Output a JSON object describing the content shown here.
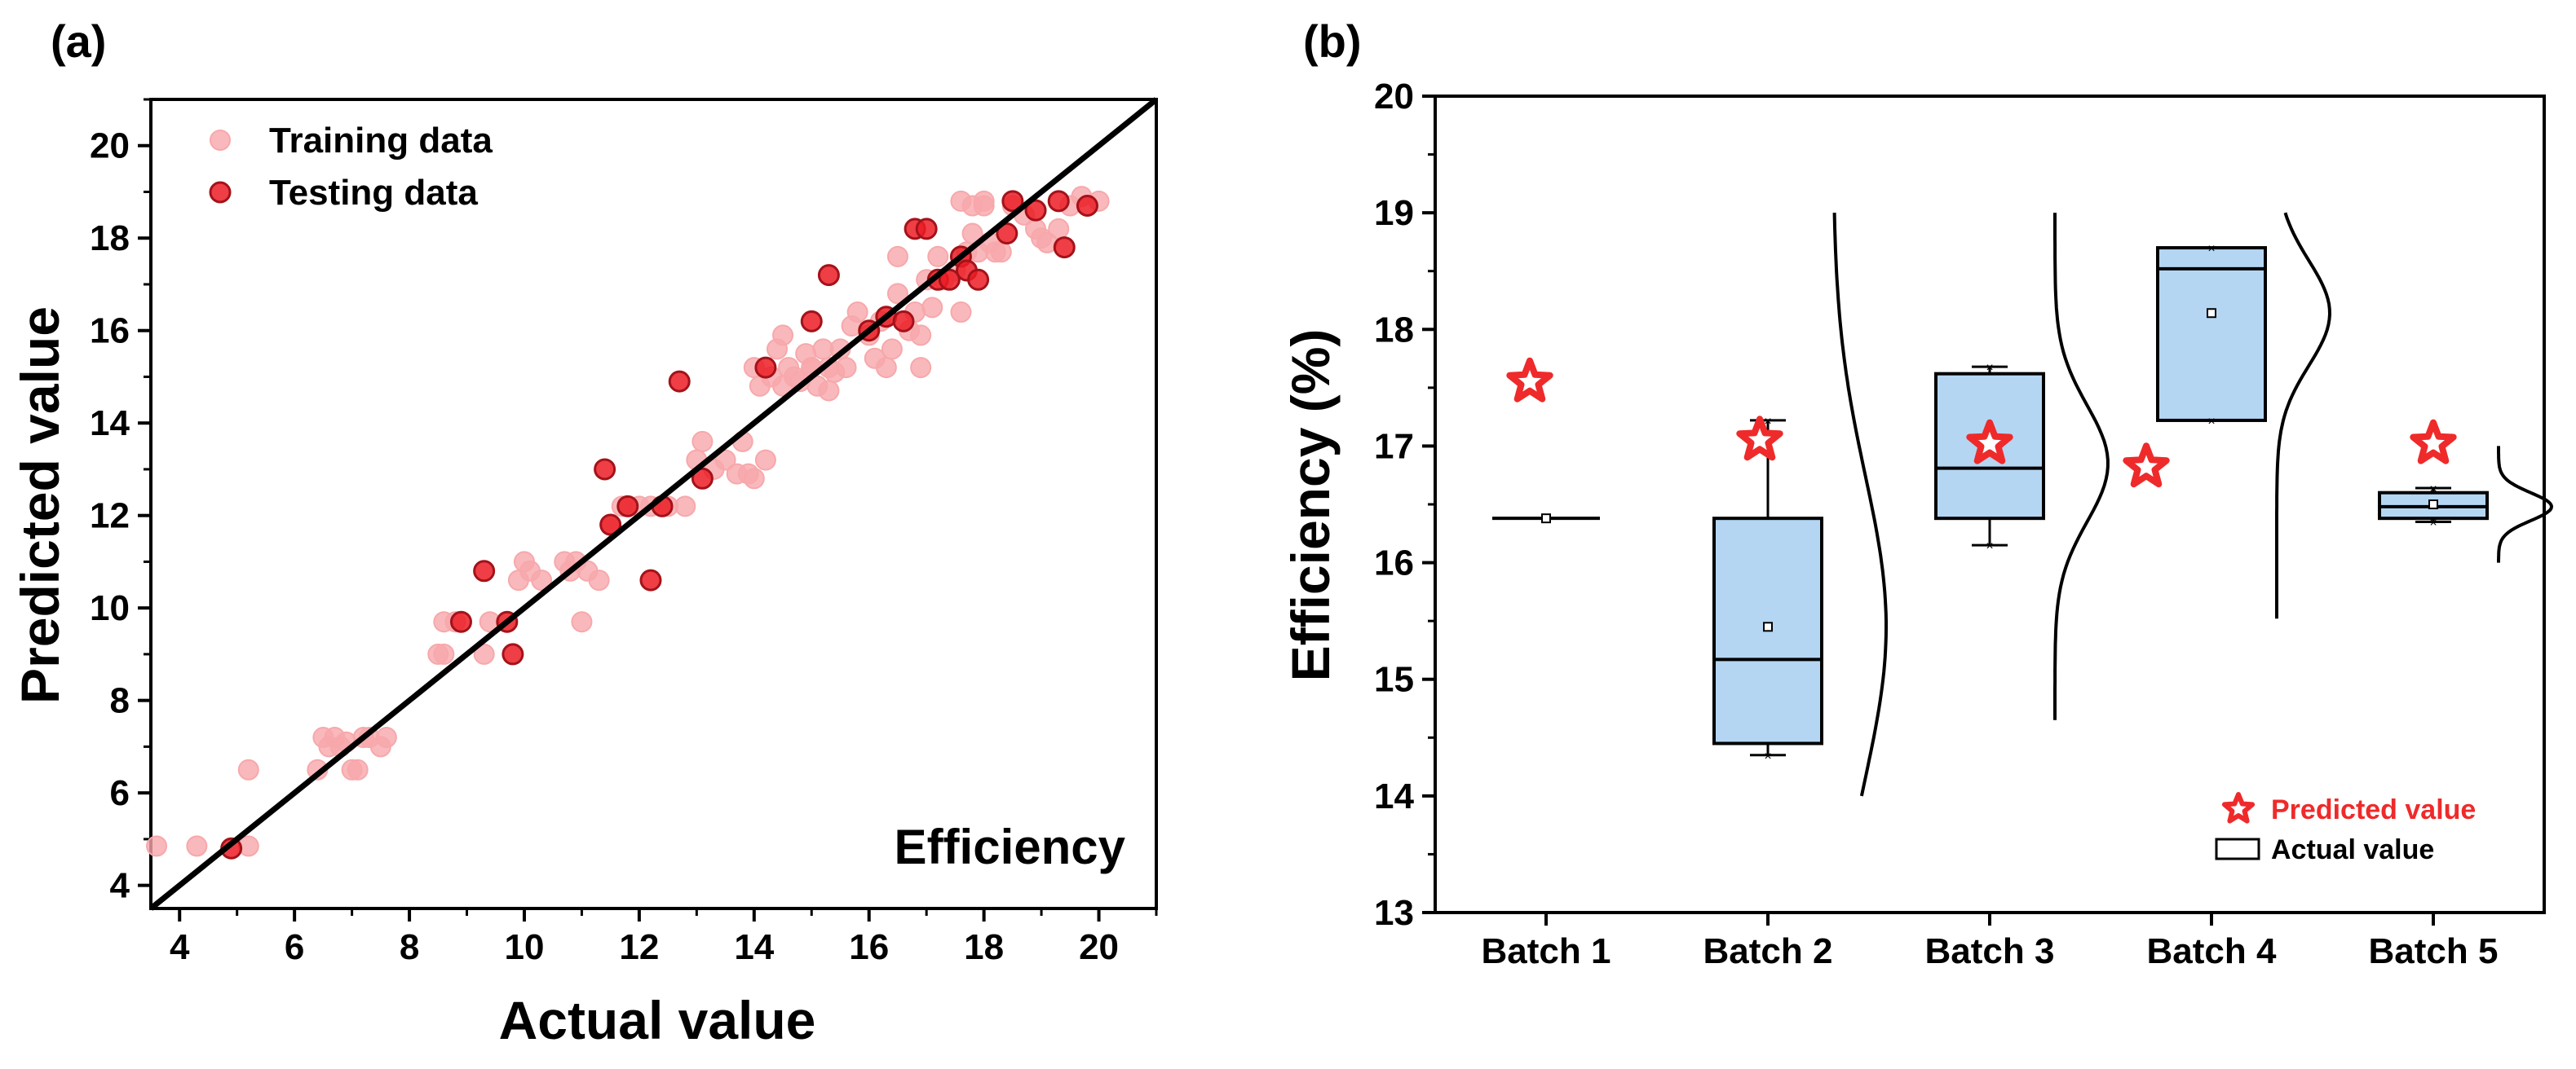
{
  "colors": {
    "training": "#f7a8ab",
    "testing": "#ec1c24",
    "box_fill": "#b4d6f3",
    "star": "#ef2a2a",
    "line": "#000000"
  },
  "chart_data": [
    {
      "type": "scatter",
      "panel_label": "(a)",
      "xlabel": "Actual value",
      "ylabel": "Predicted value",
      "annotation": "Efficiency",
      "xlim": [
        3.5,
        21.0
      ],
      "ylim": [
        3.5,
        21.0
      ],
      "xticks": [
        4,
        6,
        8,
        10,
        12,
        14,
        16,
        18,
        20
      ],
      "yticks": [
        4,
        6,
        8,
        10,
        12,
        14,
        16,
        18,
        20
      ],
      "xtick_labels": [
        "4",
        "6",
        "8",
        "10",
        "12",
        "14",
        "16",
        "18",
        "20"
      ],
      "ytick_labels": [
        "4",
        "6",
        "8",
        "10",
        "12",
        "14",
        "16",
        "18",
        "20"
      ],
      "legend_position": "top-left",
      "reference_line": "y = x",
      "series": [
        {
          "name": "Training data",
          "points": [
            [
              3.6,
              4.85
            ],
            [
              4.3,
              4.85
            ],
            [
              5.2,
              4.85
            ],
            [
              5.2,
              6.5
            ],
            [
              6.4,
              6.5
            ],
            [
              6.5,
              7.2
            ],
            [
              6.6,
              7.0
            ],
            [
              6.7,
              7.2
            ],
            [
              6.8,
              7.0
            ],
            [
              6.9,
              7.1
            ],
            [
              7.0,
              6.5
            ],
            [
              7.1,
              6.5
            ],
            [
              7.2,
              7.2
            ],
            [
              7.3,
              7.2
            ],
            [
              7.5,
              7.0
            ],
            [
              7.6,
              7.2
            ],
            [
              8.5,
              9.0
            ],
            [
              8.6,
              9.0
            ],
            [
              8.6,
              9.7
            ],
            [
              8.8,
              9.7
            ],
            [
              9.3,
              9.0
            ],
            [
              9.4,
              9.7
            ],
            [
              9.9,
              10.6
            ],
            [
              10.0,
              11.0
            ],
            [
              10.1,
              10.8
            ],
            [
              10.3,
              10.6
            ],
            [
              10.7,
              11.0
            ],
            [
              10.8,
              10.8
            ],
            [
              10.9,
              11.0
            ],
            [
              11.0,
              9.7
            ],
            [
              11.1,
              10.8
            ],
            [
              11.3,
              10.6
            ],
            [
              11.5,
              11.8
            ],
            [
              11.7,
              12.2
            ],
            [
              12.0,
              12.2
            ],
            [
              12.2,
              12.2
            ],
            [
              12.5,
              12.2
            ],
            [
              12.8,
              12.2
            ],
            [
              13.0,
              13.2
            ],
            [
              13.1,
              13.6
            ],
            [
              13.3,
              13.0
            ],
            [
              13.5,
              13.2
            ],
            [
              13.7,
              12.9
            ],
            [
              13.8,
              13.6
            ],
            [
              13.9,
              12.9
            ],
            [
              14.0,
              12.8
            ],
            [
              14.2,
              13.2
            ],
            [
              14.0,
              15.2
            ],
            [
              14.1,
              14.8
            ],
            [
              14.3,
              15.0
            ],
            [
              14.4,
              15.6
            ],
            [
              14.5,
              14.8
            ],
            [
              14.6,
              15.2
            ],
            [
              14.7,
              15.0
            ],
            [
              14.8,
              14.9
            ],
            [
              14.9,
              15.5
            ],
            [
              15.0,
              15.2
            ],
            [
              15.1,
              14.8
            ],
            [
              15.2,
              15.6
            ],
            [
              15.3,
              15.2
            ],
            [
              15.4,
              15.1
            ],
            [
              15.5,
              15.6
            ],
            [
              15.6,
              15.2
            ],
            [
              15.3,
              14.7
            ],
            [
              14.5,
              15.9
            ],
            [
              15.0,
              15.2
            ],
            [
              15.7,
              16.1
            ],
            [
              15.8,
              16.4
            ],
            [
              16.0,
              15.9
            ],
            [
              16.1,
              15.4
            ],
            [
              16.2,
              16.2
            ],
            [
              16.3,
              15.2
            ],
            [
              16.4,
              15.6
            ],
            [
              16.5,
              16.8
            ],
            [
              16.5,
              17.6
            ],
            [
              16.7,
              16.0
            ],
            [
              16.8,
              16.4
            ],
            [
              16.9,
              15.2
            ],
            [
              16.9,
              15.9
            ],
            [
              17.0,
              17.1
            ],
            [
              17.1,
              16.5
            ],
            [
              17.2,
              17.6
            ],
            [
              17.3,
              17.1
            ],
            [
              17.5,
              17.3
            ],
            [
              17.6,
              16.4
            ],
            [
              17.7,
              17.7
            ],
            [
              17.8,
              18.1
            ],
            [
              17.9,
              17.7
            ],
            [
              18.0,
              18.8
            ],
            [
              18.1,
              17.9
            ],
            [
              18.2,
              17.7
            ],
            [
              18.3,
              17.7
            ],
            [
              18.5,
              18.7
            ],
            [
              18.7,
              18.5
            ],
            [
              18.9,
              18.2
            ],
            [
              19.0,
              18.0
            ],
            [
              19.1,
              17.9
            ],
            [
              19.3,
              18.2
            ],
            [
              19.5,
              18.7
            ],
            [
              19.7,
              18.9
            ],
            [
              20.0,
              18.8
            ],
            [
              17.6,
              18.8
            ],
            [
              17.8,
              18.7
            ],
            [
              18.0,
              18.7
            ]
          ]
        },
        {
          "name": "Testing data",
          "points": [
            [
              4.9,
              4.8
            ],
            [
              8.9,
              9.7
            ],
            [
              9.3,
              10.8
            ],
            [
              9.7,
              9.7
            ],
            [
              9.8,
              9.0
            ],
            [
              11.4,
              13.0
            ],
            [
              11.5,
              11.8
            ],
            [
              11.8,
              12.2
            ],
            [
              12.2,
              10.6
            ],
            [
              12.4,
              12.2
            ],
            [
              12.7,
              14.9
            ],
            [
              13.1,
              12.8
            ],
            [
              14.2,
              15.2
            ],
            [
              15.0,
              16.2
            ],
            [
              15.3,
              17.2
            ],
            [
              16.0,
              16.0
            ],
            [
              16.3,
              16.3
            ],
            [
              16.6,
              16.2
            ],
            [
              16.8,
              18.2
            ],
            [
              17.0,
              18.2
            ],
            [
              17.2,
              17.1
            ],
            [
              17.4,
              17.1
            ],
            [
              17.6,
              17.6
            ],
            [
              17.7,
              17.3
            ],
            [
              17.9,
              17.1
            ],
            [
              18.4,
              18.1
            ],
            [
              18.5,
              18.8
            ],
            [
              18.9,
              18.6
            ],
            [
              19.3,
              18.8
            ],
            [
              19.4,
              17.8
            ],
            [
              19.8,
              18.7
            ]
          ]
        }
      ]
    },
    {
      "type": "box",
      "panel_label": "(b)",
      "xlabel": "",
      "ylabel": "Efficiency (%)",
      "ylim": [
        13,
        20
      ],
      "yticks": [
        13,
        14,
        15,
        16,
        17,
        18,
        19,
        20
      ],
      "ytick_labels": [
        "13",
        "14",
        "15",
        "16",
        "17",
        "18",
        "19",
        "20"
      ],
      "categories": [
        "Batch 1",
        "Batch 2",
        "Batch 3",
        "Batch 4",
        "Batch 5"
      ],
      "legend_position": "bottom-right",
      "legend": [
        "Predicted value",
        "Actual value"
      ],
      "series": [
        {
          "name": "Actual value",
          "boxes": [
            {
              "q1": 16.38,
              "median": 16.38,
              "q3": 16.38,
              "whisker_low": 16.38,
              "whisker_high": 16.38,
              "mean": 16.38,
              "min": null,
              "max": null,
              "curve": null
            },
            {
              "q1": 14.45,
              "median": 15.17,
              "q3": 16.38,
              "whisker_low": 14.35,
              "whisker_high": 17.22,
              "mean": 15.45,
              "min": 14.35,
              "max": 17.22,
              "curve": {
                "mu": 15.45,
                "sigma": 1.3,
                "from": 14.0,
                "to": 19.0
              }
            },
            {
              "q1": 16.38,
              "median": 16.81,
              "q3": 17.62,
              "whisker_low": 16.15,
              "whisker_high": 17.68,
              "mean": 17.0,
              "min": 16.15,
              "max": 17.68,
              "curve": {
                "mu": 16.85,
                "sigma": 0.5,
                "from": 14.65,
                "to": 19.0
              }
            },
            {
              "q1": 17.22,
              "median": 18.52,
              "q3": 18.7,
              "whisker_low": 17.22,
              "whisker_high": 18.7,
              "mean": 18.14,
              "min": 17.22,
              "max": 18.7,
              "curve": {
                "mu": 18.14,
                "sigma": 0.45,
                "from": 15.52,
                "to": 19.0
              }
            },
            {
              "q1": 16.38,
              "median": 16.48,
              "q3": 16.6,
              "whisker_low": 16.35,
              "whisker_high": 16.64,
              "mean": 16.5,
              "min": 16.35,
              "max": 16.64,
              "curve": {
                "mu": 16.48,
                "sigma": 0.12,
                "from": 16.0,
                "to": 17.0
              }
            }
          ]
        },
        {
          "name": "Predicted value",
          "values": [
            17.55,
            17.05,
            17.02,
            16.82,
            17.02
          ]
        }
      ]
    }
  ]
}
